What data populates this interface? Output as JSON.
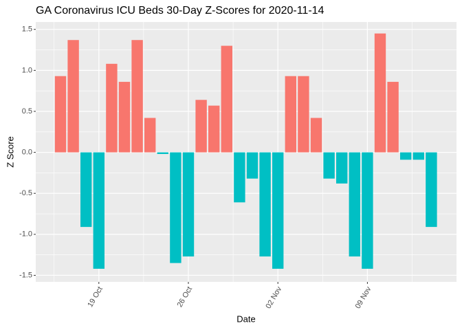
{
  "chart_data": {
    "type": "bar",
    "title": "GA Coronavirus ICU Beds 30-Day Z-Scores for 2020-11-14",
    "x_label": "Date",
    "y_label": "Z Score",
    "categories": [
      null,
      null,
      null,
      "19 Oct",
      null,
      null,
      null,
      null,
      null,
      null,
      "26 Oct",
      null,
      null,
      null,
      null,
      null,
      null,
      "02 Nov",
      null,
      null,
      null,
      null,
      null,
      null,
      "09 Nov",
      null,
      null,
      null,
      null,
      null
    ],
    "values": [
      0.93,
      1.37,
      -0.91,
      -1.42,
      1.08,
      0.86,
      1.37,
      0.42,
      -0.02,
      -1.35,
      -1.27,
      0.64,
      0.57,
      1.3,
      -0.61,
      -0.32,
      -1.27,
      -1.42,
      0.93,
      0.93,
      0.42,
      -0.32,
      -0.38,
      -1.27,
      -1.42,
      1.45,
      0.86,
      -0.09,
      -0.09,
      -0.91
    ],
    "positive_color": "#F8766D",
    "negative_color": "#00BFC4",
    "ylim": [
      -1.58,
      1.59
    ],
    "yticks": [
      {
        "value": -1.5,
        "label": "-1.5"
      },
      {
        "value": -1.0,
        "label": "-1.0"
      },
      {
        "value": -0.5,
        "label": "-0.5"
      },
      {
        "value": 0,
        "label": "0.0"
      },
      {
        "value": 0.5,
        "label": "0.5"
      },
      {
        "value": 1.0,
        "label": "1.0"
      },
      {
        "value": 1.5,
        "label": "1.5"
      }
    ],
    "grid": true
  }
}
